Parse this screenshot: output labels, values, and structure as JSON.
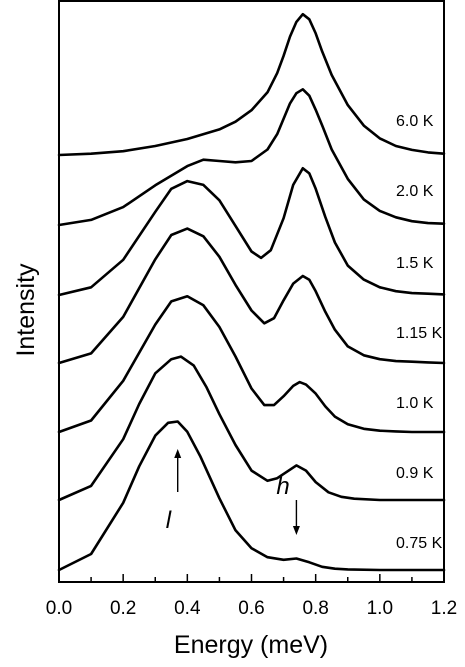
{
  "chart_data": {
    "type": "line",
    "xlabel": "Energy (meV)",
    "ylabel": "Intensity",
    "xlim": [
      0.0,
      1.2
    ],
    "x_ticks": [
      "0.0",
      "0.2",
      "0.4",
      "0.6",
      "0.8",
      "1.0",
      "1.2"
    ],
    "x_tick_values": [
      0.0,
      0.2,
      0.4,
      0.6,
      0.8,
      1.0,
      1.2
    ],
    "y_ticks_shown": false,
    "grid": false,
    "stacked_offset_curves": true,
    "series": [
      {
        "name": "6.0 K",
        "x": [
          0.0,
          0.1,
          0.2,
          0.3,
          0.4,
          0.5,
          0.55,
          0.6,
          0.65,
          0.68,
          0.7,
          0.72,
          0.74,
          0.76,
          0.78,
          0.8,
          0.82,
          0.85,
          0.9,
          0.95,
          1.0,
          1.05,
          1.1,
          1.15,
          1.2
        ],
        "y": [
          0.0,
          0.02,
          0.06,
          0.14,
          0.25,
          0.4,
          0.52,
          0.7,
          0.98,
          1.28,
          1.55,
          1.85,
          2.08,
          2.2,
          2.12,
          1.9,
          1.62,
          1.25,
          0.78,
          0.46,
          0.26,
          0.14,
          0.08,
          0.04,
          0.02
        ]
      },
      {
        "name": "2.0 K",
        "x": [
          0.0,
          0.1,
          0.2,
          0.3,
          0.4,
          0.45,
          0.5,
          0.55,
          0.6,
          0.65,
          0.68,
          0.7,
          0.72,
          0.74,
          0.76,
          0.78,
          0.8,
          0.82,
          0.85,
          0.9,
          0.95,
          1.0,
          1.05,
          1.1,
          1.15,
          1.2
        ],
        "y": [
          0.0,
          0.08,
          0.28,
          0.62,
          0.92,
          1.02,
          1.0,
          0.98,
          1.0,
          1.18,
          1.42,
          1.66,
          1.9,
          2.06,
          2.12,
          2.02,
          1.8,
          1.56,
          1.18,
          0.72,
          0.4,
          0.22,
          0.12,
          0.06,
          0.03,
          0.02
        ]
      },
      {
        "name": "1.5 K",
        "x": [
          0.0,
          0.1,
          0.2,
          0.3,
          0.35,
          0.4,
          0.45,
          0.5,
          0.55,
          0.6,
          0.63,
          0.66,
          0.7,
          0.73,
          0.76,
          0.78,
          0.8,
          0.83,
          0.86,
          0.9,
          0.95,
          1.0,
          1.05,
          1.1,
          1.15,
          1.2
        ],
        "y": [
          0.0,
          0.12,
          0.55,
          1.3,
          1.66,
          1.78,
          1.72,
          1.48,
          1.08,
          0.68,
          0.58,
          0.7,
          1.2,
          1.72,
          1.98,
          1.9,
          1.66,
          1.22,
          0.82,
          0.46,
          0.24,
          0.12,
          0.06,
          0.03,
          0.02,
          0.01
        ]
      },
      {
        "name": "1.15 K",
        "x": [
          0.0,
          0.1,
          0.2,
          0.3,
          0.35,
          0.4,
          0.45,
          0.5,
          0.55,
          0.6,
          0.64,
          0.67,
          0.7,
          0.73,
          0.76,
          0.78,
          0.8,
          0.83,
          0.86,
          0.9,
          0.95,
          1.0,
          1.05,
          1.1,
          1.15,
          1.2
        ],
        "y": [
          0.0,
          0.15,
          0.72,
          1.62,
          2.0,
          2.1,
          1.98,
          1.66,
          1.22,
          0.82,
          0.62,
          0.7,
          0.98,
          1.24,
          1.36,
          1.3,
          1.12,
          0.8,
          0.52,
          0.26,
          0.12,
          0.06,
          0.03,
          0.02,
          0.01,
          0.0
        ]
      },
      {
        "name": "1.0 K",
        "x": [
          0.0,
          0.1,
          0.2,
          0.3,
          0.35,
          0.4,
          0.45,
          0.5,
          0.55,
          0.6,
          0.64,
          0.67,
          0.7,
          0.73,
          0.75,
          0.77,
          0.8,
          0.83,
          0.86,
          0.9,
          0.95,
          1.0,
          1.05,
          1.1,
          1.15,
          1.2
        ],
        "y": [
          0.0,
          0.18,
          0.8,
          1.68,
          2.04,
          2.12,
          1.98,
          1.64,
          1.18,
          0.68,
          0.42,
          0.42,
          0.56,
          0.72,
          0.78,
          0.74,
          0.6,
          0.4,
          0.24,
          0.12,
          0.05,
          0.02,
          0.01,
          0.0,
          0.0,
          0.0
        ]
      },
      {
        "name": "0.9 K",
        "x": [
          0.0,
          0.1,
          0.2,
          0.25,
          0.3,
          0.35,
          0.38,
          0.42,
          0.46,
          0.5,
          0.55,
          0.6,
          0.65,
          0.68,
          0.71,
          0.74,
          0.77,
          0.8,
          0.84,
          0.88,
          0.92,
          1.0,
          1.1,
          1.2
        ],
        "y": [
          0.0,
          0.22,
          0.95,
          1.5,
          1.98,
          2.2,
          2.24,
          2.1,
          1.76,
          1.34,
          0.86,
          0.46,
          0.3,
          0.34,
          0.44,
          0.54,
          0.46,
          0.28,
          0.12,
          0.05,
          0.02,
          0.0,
          0.0,
          0.0
        ]
      }
    ],
    "bottom_series": {
      "name": "0.75 K",
      "x": [
        0.0,
        0.1,
        0.2,
        0.25,
        0.3,
        0.34,
        0.37,
        0.4,
        0.44,
        0.5,
        0.55,
        0.6,
        0.65,
        0.7,
        0.74,
        0.78,
        0.82,
        0.86,
        0.9,
        1.0,
        1.1,
        1.2
      ],
      "y": [
        0.0,
        0.25,
        1.05,
        1.62,
        2.1,
        2.3,
        2.32,
        2.16,
        1.78,
        1.12,
        0.62,
        0.34,
        0.2,
        0.16,
        0.18,
        0.12,
        0.05,
        0.02,
        0.01,
        0.0,
        0.0,
        0.0
      ]
    },
    "annotations": [
      {
        "text": "l",
        "x": 0.37,
        "direction": "up"
      },
      {
        "text": "h",
        "x": 0.74,
        "direction": "down"
      }
    ]
  }
}
